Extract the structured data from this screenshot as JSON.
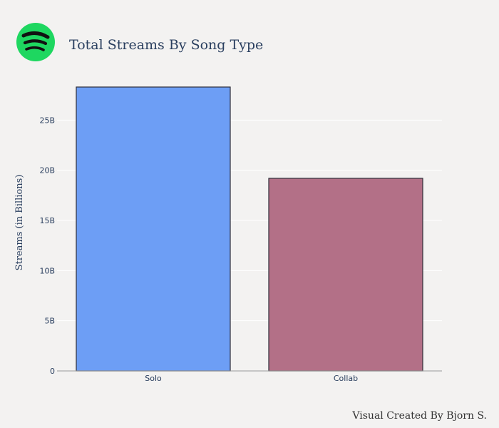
{
  "title": "Total Streams By Song Type",
  "credit": "Visual Created By Bjorn S.",
  "logo_icon": "spotify-logo-icon",
  "colors": {
    "background": "#f3f2f1",
    "gridline": "#ffffff",
    "axis_line": "#9a9a9a",
    "bar_outline": "#2f2f3a",
    "logo_green": "#1ed760",
    "logo_waves": "#111111"
  },
  "chart_data": {
    "type": "bar",
    "title": "Total Streams By Song Type",
    "xlabel": "",
    "ylabel": "Streams (in Billions)",
    "categories": [
      "Solo",
      "Collab"
    ],
    "values": [
      28.3,
      19.2
    ],
    "bar_colors": [
      "#6d9ef5",
      "#b37087"
    ],
    "ylim": [
      0,
      28.3
    ],
    "yticks": [
      0,
      5,
      10,
      15,
      20,
      25
    ],
    "ytick_labels": [
      "0",
      "5B",
      "10B",
      "15B",
      "20B",
      "25B"
    ],
    "grid": true,
    "legend": "none"
  }
}
